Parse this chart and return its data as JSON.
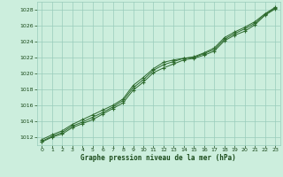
{
  "x": [
    0,
    1,
    2,
    3,
    4,
    5,
    6,
    7,
    8,
    9,
    10,
    11,
    12,
    13,
    14,
    15,
    16,
    17,
    18,
    19,
    20,
    21,
    22,
    23
  ],
  "line_main": [
    1011.5,
    1012.1,
    1012.6,
    1013.4,
    1013.9,
    1014.5,
    1015.1,
    1015.8,
    1016.6,
    1018.2,
    1019.2,
    1020.4,
    1021.1,
    1021.5,
    1021.9,
    1022.0,
    1022.5,
    1023.0,
    1024.3,
    1025.0,
    1025.6,
    1026.3,
    1027.4,
    1028.2
  ],
  "line_upper": [
    1011.7,
    1012.3,
    1012.8,
    1013.6,
    1014.2,
    1014.8,
    1015.4,
    1016.0,
    1016.8,
    1018.5,
    1019.5,
    1020.6,
    1021.4,
    1021.7,
    1021.9,
    1022.1,
    1022.6,
    1023.2,
    1024.5,
    1025.2,
    1025.8,
    1026.5,
    1027.5,
    1028.3
  ],
  "line_lower": [
    1011.4,
    1012.0,
    1012.4,
    1013.2,
    1013.7,
    1014.2,
    1014.9,
    1015.6,
    1016.3,
    1017.9,
    1018.9,
    1020.1,
    1020.7,
    1021.2,
    1021.7,
    1021.9,
    1022.3,
    1022.8,
    1024.1,
    1024.8,
    1025.3,
    1026.1,
    1027.3,
    1028.1
  ],
  "line_color": "#2d6a2d",
  "bg_color": "#cceedd",
  "grid_color": "#99ccbb",
  "xlabel": "Graphe pression niveau de la mer (hPa)",
  "tick_color": "#1a4a1a",
  "ylim": [
    1011,
    1029
  ],
  "xlim": [
    -0.5,
    23.5
  ],
  "yticks": [
    1012,
    1014,
    1016,
    1018,
    1020,
    1022,
    1024,
    1026,
    1028
  ],
  "xticks": [
    0,
    1,
    2,
    3,
    4,
    5,
    6,
    7,
    8,
    9,
    10,
    11,
    12,
    13,
    14,
    15,
    16,
    17,
    18,
    19,
    20,
    21,
    22,
    23
  ],
  "marker": "+",
  "markersize": 3,
  "linewidth": 0.7
}
